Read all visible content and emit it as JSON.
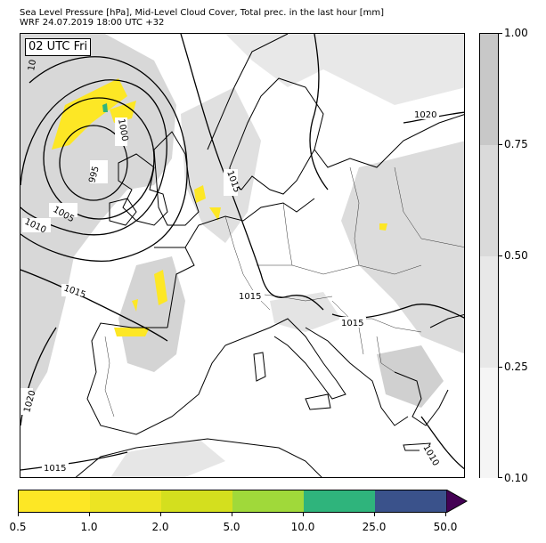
{
  "title": {
    "line1": "Sea Level Pressure [hPa], Mid-Level Cloud Cover, Total prec. in the last hour [mm]",
    "line2": "WRF 24.07.2019 18:00 UTC +32"
  },
  "time_badge": "02 UTC Fri",
  "isobar_labels": {
    "low_center": "995",
    "l1000": "1000",
    "l1005": "1005",
    "l1010_west": "1010",
    "l1010_se": "1010",
    "l1015_west": "1015",
    "l1015_central": "1015",
    "l1015_adriatic": "1015",
    "l1015_ne": "1015",
    "l1015_sw": "1015",
    "l1020_ne": "1020",
    "l1020_sw": "1020",
    "l10_topleft": "10"
  },
  "cloud_colorbar": {
    "ticks": [
      "1.00",
      "0.75",
      "0.50",
      "0.25",
      "0.10"
    ],
    "colors": [
      "#c8c8c8",
      "#dadada",
      "#e8e8e8",
      "#f5f5f5"
    ]
  },
  "precip_colorbar": {
    "ticks": [
      "0.5",
      "1.0",
      "2.0",
      "5.0",
      "10.0",
      "25.0",
      "50.0"
    ],
    "colors": [
      "#fde725",
      "#ece423",
      "#d4df1e",
      "#a0d93a",
      "#2fb47c",
      "#3a528b",
      "#440154"
    ]
  }
}
